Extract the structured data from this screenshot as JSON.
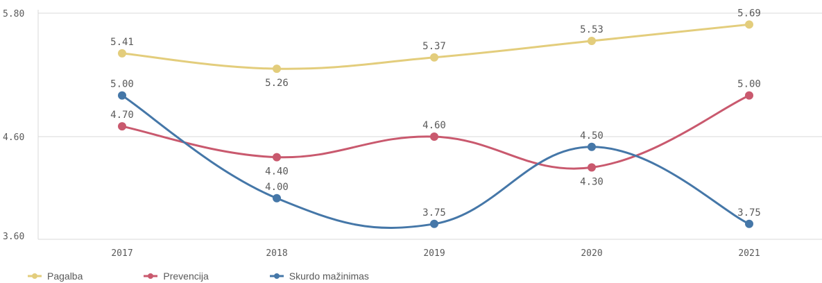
{
  "chart_data": {
    "type": "line",
    "categories": [
      "2017",
      "2018",
      "2019",
      "2020",
      "2021"
    ],
    "yticks": [
      "3.60",
      "4.60",
      "5.80"
    ],
    "ylim": [
      3.6,
      5.8
    ],
    "grid": true,
    "legend_position": "bottom-left",
    "series": [
      {
        "name": "Pagalba",
        "color": "#e3cd7c",
        "values": [
          5.41,
          5.26,
          5.37,
          5.53,
          5.69
        ],
        "labels": [
          "5.41",
          "5.26",
          "5.37",
          "5.53",
          "5.69"
        ],
        "label_pos": [
          "above",
          "below",
          "above",
          "above",
          "above"
        ]
      },
      {
        "name": "Prevencija",
        "color": "#c9596e",
        "values": [
          4.7,
          4.4,
          4.6,
          4.3,
          5.0
        ],
        "labels": [
          "4.70",
          "4.40",
          "4.60",
          "4.30",
          "5.00"
        ],
        "label_pos": [
          "above",
          "below",
          "above",
          "below",
          "above"
        ]
      },
      {
        "name": "Skurdo mažinimas",
        "color": "#4577a8",
        "values": [
          5.0,
          4.0,
          3.75,
          4.5,
          3.75
        ],
        "labels": [
          "5.00",
          "4.00",
          "3.75",
          "4.50",
          "3.75"
        ],
        "label_pos": [
          "above",
          "above",
          "above",
          "above",
          "above"
        ]
      }
    ]
  }
}
